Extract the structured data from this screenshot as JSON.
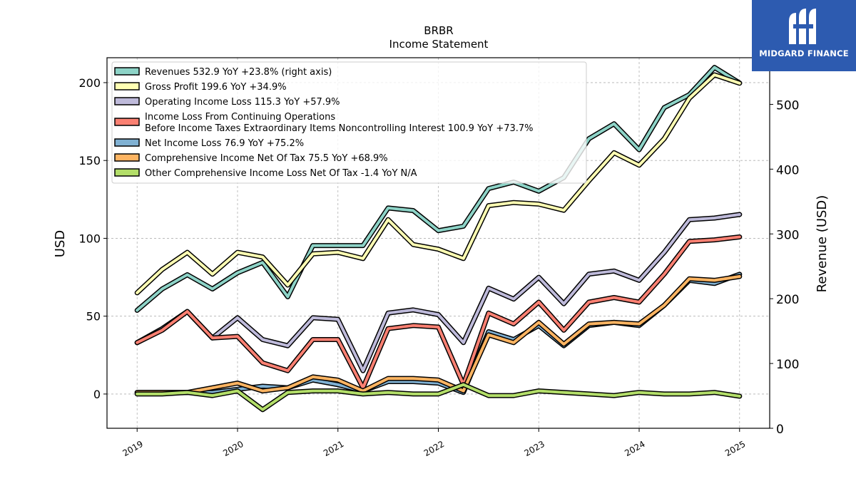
{
  "brand": {
    "name": "MIDGARD FINANCE",
    "bg_color": "#2d5bb0"
  },
  "chart_data": {
    "type": "line",
    "title": "BRBR",
    "subtitle": "Income Statement",
    "ylabel_left": "USD",
    "ylabel_right": "Revenue (USD)",
    "ylim_left": [
      -22,
      216
    ],
    "ylim_right": [
      0,
      572
    ],
    "yticks_left": [
      0,
      50,
      100,
      150,
      200
    ],
    "yticks_right": [
      0,
      100,
      200,
      300,
      400,
      500
    ],
    "xlim": [
      2018.7,
      2025.3
    ],
    "xticks": [
      "2019",
      "2020",
      "2021",
      "2022",
      "2023",
      "2024",
      "2025"
    ],
    "grid": true,
    "legend_position": "top-left",
    "x": [
      2019.0,
      2019.25,
      2019.5,
      2019.75,
      2020.0,
      2020.25,
      2020.5,
      2020.75,
      2021.0,
      2021.25,
      2021.5,
      2021.75,
      2022.0,
      2022.25,
      2022.5,
      2022.75,
      2023.0,
      2023.25,
      2023.5,
      2023.75,
      2024.0,
      2024.25,
      2024.5,
      2024.75,
      2025.0
    ],
    "series": [
      {
        "name": "Revenues  532.9 YoY +23.8% (right axis)",
        "color": "#8dd3c7",
        "axis": "right",
        "values": [
          182,
          215,
          237,
          215,
          240,
          256,
          203,
          282,
          282,
          282,
          340,
          336,
          305,
          312,
          370,
          380,
          366,
          387,
          447,
          470,
          430,
          495,
          515,
          557,
          532.9
        ]
      },
      {
        "name": "Gross Profit  199.6 YoY +34.9%",
        "color": "#ffffb3",
        "axis": "left",
        "values": [
          65,
          80,
          91,
          77,
          91,
          88,
          70,
          90,
          91,
          87,
          112,
          96,
          93,
          87,
          121,
          123,
          122,
          118,
          137,
          155,
          147,
          164,
          190,
          205,
          199.6
        ]
      },
      {
        "name": "Operating Income Loss  115.3 YoY +57.9%",
        "color": "#bebada",
        "axis": "left",
        "values": [
          33,
          42,
          53,
          36,
          49,
          35,
          31,
          49,
          48,
          15,
          52,
          54,
          51,
          33,
          68,
          61,
          75,
          58,
          77,
          79,
          73,
          91,
          112,
          113,
          115.3
        ]
      },
      {
        "name": "Income Loss From Continuing Operations\nBefore Income Taxes Extraordinary Items Noncontrolling Interest  100.9 YoY +73.7%",
        "color": "#fb8072",
        "axis": "left",
        "values": [
          33,
          41,
          53,
          36,
          37,
          20,
          15,
          35,
          35,
          4,
          42,
          44,
          43,
          6,
          52,
          45,
          59,
          41,
          59,
          62,
          59,
          77,
          98,
          99,
          100.9
        ]
      },
      {
        "name": "Net Income Loss  76.9 YoY +75.2%",
        "color": "#80b1d3",
        "axis": "left",
        "values": [
          1,
          1,
          1,
          1,
          3,
          5,
          4,
          9,
          6,
          2,
          8,
          8,
          7,
          1,
          40,
          35,
          44,
          31,
          44,
          46,
          44,
          57,
          73,
          71,
          76.9
        ]
      },
      {
        "name": "Comprehensive Income Net Of Tax  75.5 YoY +68.9%",
        "color": "#fdb462",
        "axis": "left",
        "values": [
          1,
          1,
          1,
          4,
          7,
          2,
          4,
          11,
          9,
          2,
          10,
          10,
          9,
          2,
          38,
          33,
          46,
          32,
          45,
          46,
          45,
          57,
          74,
          73,
          75.5
        ]
      },
      {
        "name": "Other Comprehensive Income Loss Net Of Tax  -1.4 YoY N/A",
        "color": "#b3de69",
        "axis": "left",
        "values": [
          0,
          0,
          1,
          -1,
          2,
          -10,
          1,
          2,
          2,
          0,
          1,
          0,
          0,
          6,
          -1,
          -1,
          2,
          1,
          0,
          -1,
          1,
          0,
          0,
          1,
          -1.4
        ]
      }
    ]
  }
}
